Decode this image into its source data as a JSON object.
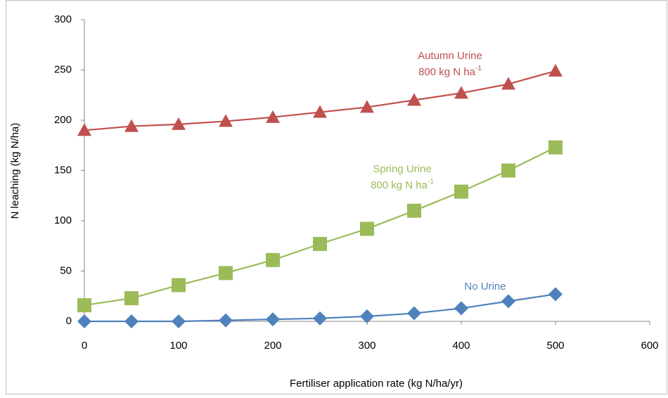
{
  "chart_data": {
    "type": "line",
    "x_label": "Fertiliser application rate (kg N/ha/yr)",
    "y_label": "N leaching (kg N/ha)",
    "x": [
      0,
      50,
      100,
      150,
      200,
      250,
      300,
      350,
      400,
      450,
      500
    ],
    "series": [
      {
        "name": "No Urine",
        "color": "#4f81bd",
        "marker": "diamond",
        "values": [
          0,
          0,
          0,
          1,
          2,
          3,
          5,
          8,
          13,
          20,
          27
        ]
      },
      {
        "name": "Spring Urine",
        "label_unit": "800 kg N ha",
        "label_sup": "-1",
        "color": "#9bbb59",
        "marker": "square",
        "values": [
          16,
          23,
          36,
          48,
          61,
          77,
          92,
          110,
          129,
          150,
          173
        ]
      },
      {
        "name": "Autumn Urine",
        "label_unit": "800 kg N ha",
        "label_sup": "-1",
        "color": "#c0504d",
        "marker": "triangle",
        "values": [
          190,
          194,
          196,
          199,
          203,
          208,
          213,
          220,
          227,
          236,
          249
        ]
      }
    ],
    "xlim": [
      0,
      600
    ],
    "xticks": [
      0,
      100,
      200,
      300,
      400,
      500,
      600
    ],
    "ylim": [
      0,
      300
    ],
    "yticks": [
      0,
      50,
      100,
      150,
      200,
      250,
      300
    ],
    "grid": false
  }
}
